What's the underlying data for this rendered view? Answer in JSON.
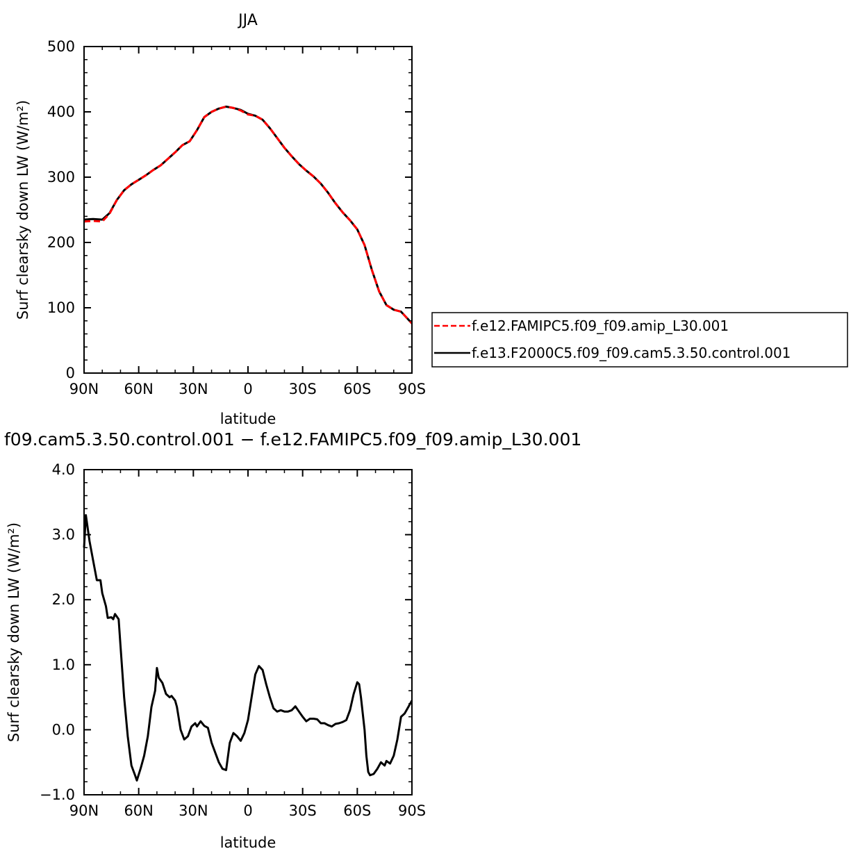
{
  "chart_data": [
    {
      "type": "line",
      "title": "JJA",
      "xlabel": "latitude",
      "ylabel": "Surf clearsky down LW (W/m²)",
      "xlim": [
        90,
        -90
      ],
      "ylim": [
        0,
        500
      ],
      "xticks": [
        {
          "value": 90,
          "label": "90N"
        },
        {
          "value": 60,
          "label": "60N"
        },
        {
          "value": 30,
          "label": "30N"
        },
        {
          "value": 0,
          "label": "0"
        },
        {
          "value": -30,
          "label": "30S"
        },
        {
          "value": -60,
          "label": "60S"
        },
        {
          "value": -90,
          "label": "90S"
        }
      ],
      "yticks": [
        {
          "value": 0,
          "label": "0"
        },
        {
          "value": 100,
          "label": "100"
        },
        {
          "value": 200,
          "label": "200"
        },
        {
          "value": 300,
          "label": "300"
        },
        {
          "value": 400,
          "label": "400"
        },
        {
          "value": 500,
          "label": "500"
        }
      ],
      "legend_position": "right",
      "series": [
        {
          "name": "f.e12.FAMIPC5.f09_f09.amip_L30.001",
          "color": "#ff0000",
          "style": "dashed",
          "points": [
            [
              90,
              232
            ],
            [
              85,
              233
            ],
            [
              80,
              232
            ],
            [
              76,
              244
            ],
            [
              72,
              265
            ],
            [
              68,
              280
            ],
            [
              64,
              289
            ],
            [
              60,
              296
            ],
            [
              56,
              303
            ],
            [
              52,
              311
            ],
            [
              48,
              318
            ],
            [
              44,
              328
            ],
            [
              40,
              338
            ],
            [
              36,
              349
            ],
            [
              32,
              355
            ],
            [
              28,
              372
            ],
            [
              24,
              392
            ],
            [
              20,
              400
            ],
            [
              16,
              405
            ],
            [
              12,
              408
            ],
            [
              8,
              406
            ],
            [
              4,
              402
            ],
            [
              0,
              396
            ],
            [
              -4,
              394
            ],
            [
              -8,
              388
            ],
            [
              -12,
              375
            ],
            [
              -16,
              360
            ],
            [
              -20,
              345
            ],
            [
              -24,
              332
            ],
            [
              -28,
              320
            ],
            [
              -32,
              310
            ],
            [
              -36,
              301
            ],
            [
              -40,
              290
            ],
            [
              -44,
              276
            ],
            [
              -48,
              260
            ],
            [
              -52,
              246
            ],
            [
              -56,
              234
            ],
            [
              -60,
              220
            ],
            [
              -64,
              196
            ],
            [
              -68,
              158
            ],
            [
              -72,
              125
            ],
            [
              -76,
              104
            ],
            [
              -80,
              97
            ],
            [
              -84,
              94
            ],
            [
              -88,
              82
            ],
            [
              -90,
              76
            ]
          ]
        },
        {
          "name": "f.e13.F2000C5.f09_f09.cam5.3.50.control.001",
          "color": "#000000",
          "style": "solid",
          "points": [
            [
              90,
              235
            ],
            [
              85,
              236
            ],
            [
              80,
              235
            ],
            [
              76,
              245
            ],
            [
              72,
              265
            ],
            [
              68,
              280
            ],
            [
              64,
              289
            ],
            [
              60,
              296
            ],
            [
              56,
              303
            ],
            [
              52,
              311
            ],
            [
              48,
              318
            ],
            [
              44,
              328
            ],
            [
              40,
              338
            ],
            [
              36,
              349
            ],
            [
              32,
              355
            ],
            [
              28,
              372
            ],
            [
              24,
              392
            ],
            [
              20,
              400
            ],
            [
              16,
              405
            ],
            [
              12,
              408
            ],
            [
              8,
              406
            ],
            [
              4,
              403
            ],
            [
              0,
              397
            ],
            [
              -4,
              394
            ],
            [
              -8,
              388
            ],
            [
              -12,
              375
            ],
            [
              -16,
              360
            ],
            [
              -20,
              345
            ],
            [
              -24,
              332
            ],
            [
              -28,
              320
            ],
            [
              -32,
              310
            ],
            [
              -36,
              301
            ],
            [
              -40,
              290
            ],
            [
              -44,
              276
            ],
            [
              -48,
              260
            ],
            [
              -52,
              246
            ],
            [
              -56,
              234
            ],
            [
              -60,
              220
            ],
            [
              -64,
              196
            ],
            [
              -68,
              158
            ],
            [
              -72,
              125
            ],
            [
              -76,
              104
            ],
            [
              -80,
              97
            ],
            [
              -84,
              94
            ],
            [
              -88,
              82
            ],
            [
              -90,
              76
            ]
          ]
        }
      ]
    },
    {
      "type": "line",
      "title": "f09.cam5.3.50.control.001 − f.e12.FAMIPC5.f09_f09.amip_L30.001",
      "xlabel": "latitude",
      "ylabel": "Surf clearsky down LW (W/m²)",
      "xlim": [
        90,
        -90
      ],
      "ylim": [
        -1.0,
        4.0
      ],
      "xticks": [
        {
          "value": 90,
          "label": "90N"
        },
        {
          "value": 60,
          "label": "60N"
        },
        {
          "value": 30,
          "label": "30N"
        },
        {
          "value": 0,
          "label": "0"
        },
        {
          "value": -30,
          "label": "30S"
        },
        {
          "value": -60,
          "label": "60S"
        },
        {
          "value": -90,
          "label": "90S"
        }
      ],
      "yticks": [
        {
          "value": -1.0,
          "label": "−1.0"
        },
        {
          "value": 0.0,
          "label": "0.0"
        },
        {
          "value": 1.0,
          "label": "1.0"
        },
        {
          "value": 2.0,
          "label": "2.0"
        },
        {
          "value": 3.0,
          "label": "3.0"
        },
        {
          "value": 4.0,
          "label": "4.0"
        }
      ],
      "series": [
        {
          "color": "#000000",
          "style": "solid",
          "points": [
            [
              90,
              2.8
            ],
            [
              89,
              3.3
            ],
            [
              87,
              2.9
            ],
            [
              85,
              2.6
            ],
            [
              83,
              2.3
            ],
            [
              81,
              2.3
            ],
            [
              80,
              2.1
            ],
            [
              78,
              1.9
            ],
            [
              77,
              1.72
            ],
            [
              75,
              1.73
            ],
            [
              74,
              1.7
            ],
            [
              73,
              1.78
            ],
            [
              71,
              1.7
            ],
            [
              70,
              1.3
            ],
            [
              68,
              0.5
            ],
            [
              66,
              -0.1
            ],
            [
              64,
              -0.55
            ],
            [
              62,
              -0.7
            ],
            [
              61,
              -0.78
            ],
            [
              59,
              -0.6
            ],
            [
              57,
              -0.4
            ],
            [
              55,
              -0.1
            ],
            [
              53,
              0.35
            ],
            [
              51,
              0.6
            ],
            [
              50,
              0.95
            ],
            [
              49,
              0.8
            ],
            [
              47,
              0.72
            ],
            [
              45,
              0.55
            ],
            [
              43,
              0.5
            ],
            [
              42,
              0.52
            ],
            [
              40,
              0.45
            ],
            [
              39,
              0.35
            ],
            [
              37,
              0.0
            ],
            [
              35,
              -0.15
            ],
            [
              33,
              -0.1
            ],
            [
              31,
              0.05
            ],
            [
              29,
              0.1
            ],
            [
              28,
              0.05
            ],
            [
              26,
              0.13
            ],
            [
              24,
              0.06
            ],
            [
              22,
              0.03
            ],
            [
              20,
              -0.2
            ],
            [
              18,
              -0.35
            ],
            [
              16,
              -0.5
            ],
            [
              14,
              -0.6
            ],
            [
              12,
              -0.62
            ],
            [
              10,
              -0.2
            ],
            [
              8,
              -0.05
            ],
            [
              6,
              -0.1
            ],
            [
              4,
              -0.17
            ],
            [
              2,
              -0.05
            ],
            [
              0,
              0.15
            ],
            [
              -2,
              0.5
            ],
            [
              -4,
              0.85
            ],
            [
              -6,
              0.98
            ],
            [
              -8,
              0.92
            ],
            [
              -10,
              0.7
            ],
            [
              -12,
              0.5
            ],
            [
              -14,
              0.33
            ],
            [
              -16,
              0.28
            ],
            [
              -18,
              0.3
            ],
            [
              -20,
              0.28
            ],
            [
              -22,
              0.28
            ],
            [
              -24,
              0.3
            ],
            [
              -26,
              0.36
            ],
            [
              -28,
              0.28
            ],
            [
              -30,
              0.2
            ],
            [
              -32,
              0.13
            ],
            [
              -34,
              0.17
            ],
            [
              -36,
              0.17
            ],
            [
              -38,
              0.16
            ],
            [
              -40,
              0.1
            ],
            [
              -42,
              0.1
            ],
            [
              -44,
              0.07
            ],
            [
              -46,
              0.05
            ],
            [
              -48,
              0.09
            ],
            [
              -50,
              0.1
            ],
            [
              -52,
              0.12
            ],
            [
              -54,
              0.15
            ],
            [
              -56,
              0.3
            ],
            [
              -58,
              0.55
            ],
            [
              -60,
              0.73
            ],
            [
              -61,
              0.7
            ],
            [
              -62,
              0.5
            ],
            [
              -64,
              0.0
            ],
            [
              -65,
              -0.4
            ],
            [
              -66,
              -0.65
            ],
            [
              -67,
              -0.7
            ],
            [
              -69,
              -0.68
            ],
            [
              -71,
              -0.6
            ],
            [
              -73,
              -0.5
            ],
            [
              -75,
              -0.55
            ],
            [
              -76,
              -0.48
            ],
            [
              -78,
              -0.52
            ],
            [
              -80,
              -0.4
            ],
            [
              -82,
              -0.15
            ],
            [
              -84,
              0.2
            ],
            [
              -86,
              0.25
            ],
            [
              -88,
              0.35
            ],
            [
              -90,
              0.45
            ]
          ]
        }
      ]
    }
  ]
}
